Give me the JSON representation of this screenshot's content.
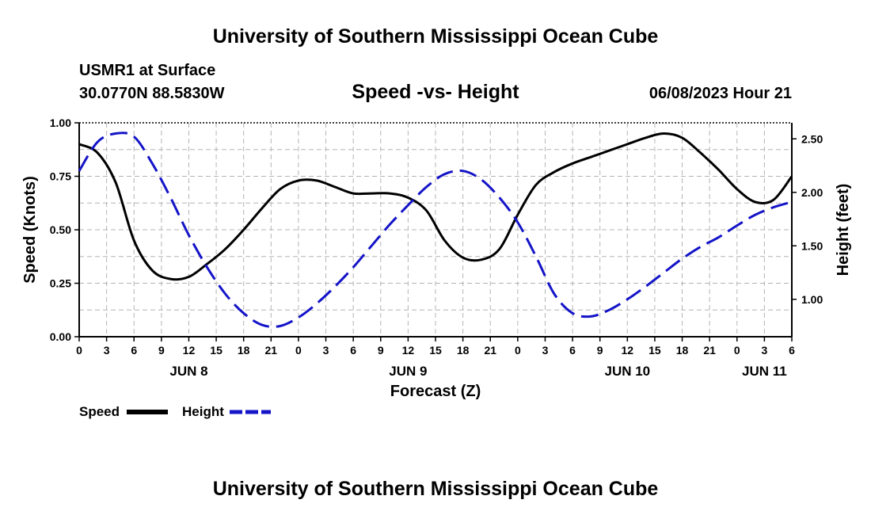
{
  "header": {
    "title": "University of Southern Mississippi Ocean Cube",
    "station": "USMR1 at Surface",
    "coords": "30.0770N  88.5830W",
    "datetime": "06/08/2023 Hour 21"
  },
  "footer": {
    "title": "University of Southern Mississippi Ocean Cube"
  },
  "colors": {
    "speed": "#000000",
    "height": "#1414c8",
    "grid": "#b4b4b4"
  },
  "chart_data": {
    "type": "line",
    "title": "Speed -vs- Height",
    "xlabel": "Forecast (Z)",
    "ylabel": "Speed (Knots)",
    "y2label": "Height (feet)",
    "xlim": [
      0,
      78
    ],
    "ylim": [
      0,
      1.0
    ],
    "y2lim": [
      0.65,
      2.65
    ],
    "grid": true,
    "legend_position": "bottom-left",
    "x_tick_labels": [
      "0",
      "3",
      "6",
      "9",
      "12",
      "15",
      "18",
      "21",
      "0",
      "3",
      "6",
      "9",
      "12",
      "15",
      "18",
      "21",
      "0",
      "3",
      "6",
      "9",
      "12",
      "15",
      "18",
      "21",
      "0",
      "3",
      "6"
    ],
    "y_ticks": [
      {
        "value": 0.0,
        "label": "0.00"
      },
      {
        "value": 0.25,
        "label": "0.25"
      },
      {
        "value": 0.5,
        "label": "0.50"
      },
      {
        "value": 0.75,
        "label": "0.75"
      },
      {
        "value": 1.0,
        "label": "1.00"
      }
    ],
    "y2_ticks": [
      {
        "value": 1.0,
        "label": "1.00"
      },
      {
        "value": 1.5,
        "label": "1.50"
      },
      {
        "value": 2.0,
        "label": "2.00"
      },
      {
        "value": 2.5,
        "label": "2.50"
      }
    ],
    "day_labels": [
      {
        "hour": 12,
        "label": "JUN 8"
      },
      {
        "hour": 36,
        "label": "JUN 9"
      },
      {
        "hour": 60,
        "label": "JUN 10"
      },
      {
        "hour": 75,
        "label": "JUN 11"
      }
    ],
    "series": [
      {
        "name": "Speed",
        "axis": "left",
        "style": "solid",
        "x": [
          0,
          2,
          4,
          6,
          8,
          10,
          12,
          14,
          16,
          18,
          20,
          22,
          24,
          26,
          28,
          30,
          32,
          34,
          36,
          38,
          40,
          42,
          44,
          46,
          48,
          50,
          52,
          54,
          56,
          58,
          60,
          62,
          64,
          66,
          68,
          70,
          72,
          74,
          76,
          78
        ],
        "values": [
          0.9,
          0.86,
          0.72,
          0.45,
          0.31,
          0.27,
          0.28,
          0.34,
          0.41,
          0.5,
          0.6,
          0.69,
          0.73,
          0.73,
          0.7,
          0.67,
          0.67,
          0.67,
          0.65,
          0.59,
          0.45,
          0.37,
          0.36,
          0.41,
          0.57,
          0.71,
          0.77,
          0.81,
          0.84,
          0.87,
          0.9,
          0.93,
          0.95,
          0.93,
          0.86,
          0.78,
          0.69,
          0.63,
          0.64,
          0.75
        ]
      },
      {
        "name": "Height",
        "axis": "right",
        "style": "dashed",
        "x": [
          0,
          2,
          4,
          6,
          8,
          10,
          12,
          14,
          16,
          18,
          20,
          22,
          24,
          26,
          28,
          30,
          32,
          34,
          36,
          38,
          40,
          42,
          44,
          46,
          48,
          50,
          52,
          54,
          56,
          58,
          60,
          62,
          64,
          66,
          68,
          70,
          72,
          74,
          76,
          78
        ],
        "values": [
          2.2,
          2.47,
          2.55,
          2.52,
          2.27,
          1.95,
          1.6,
          1.3,
          1.05,
          0.87,
          0.76,
          0.75,
          0.83,
          0.96,
          1.12,
          1.3,
          1.5,
          1.7,
          1.88,
          2.05,
          2.17,
          2.2,
          2.12,
          1.95,
          1.72,
          1.4,
          1.05,
          0.87,
          0.84,
          0.9,
          1.0,
          1.12,
          1.25,
          1.38,
          1.49,
          1.58,
          1.69,
          1.79,
          1.86,
          1.91
        ]
      }
    ]
  }
}
